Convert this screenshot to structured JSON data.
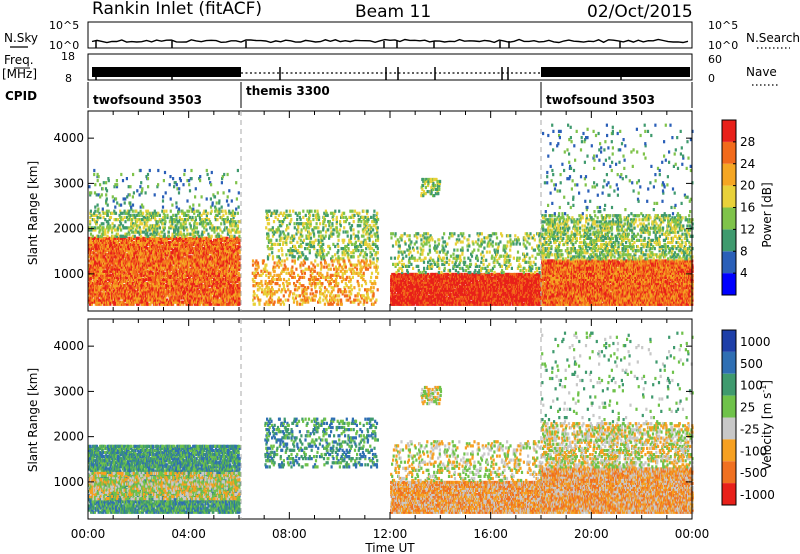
{
  "header": {
    "station": "Rankin Inlet (fitACF)",
    "beam": "Beam 11",
    "date": "02/Oct/2015"
  },
  "strip_labels": {
    "nsky": "N.Sky",
    "freq_a": "Freq.",
    "freq_b": "[MHz]",
    "cpid": "CPID",
    "nsearch": "N.Search",
    "nave": "Nave",
    "nsky_top": "10^5",
    "nsky_bot": "10^0",
    "freq_top": "18",
    "freq_bot": "8",
    "nave_top": "60",
    "nave_bot": "0",
    "cpid_segments": [
      {
        "name": "twofsound 3503",
        "start_h": 0,
        "end_h": 6
      },
      {
        "name": "themis 3300",
        "start_h": 6,
        "end_h": 18
      },
      {
        "name": "twofsound 3503",
        "start_h": 18,
        "end_h": 24
      }
    ]
  },
  "chart_data": [
    {
      "type": "heatmap",
      "title": "",
      "xlabel": "Time UT",
      "ylabel": "Slant Range [km]",
      "x_ticks": [
        "00:00",
        "04:00",
        "08:00",
        "12:00",
        "16:00",
        "20:00",
        "00:00"
      ],
      "x_range_hours": [
        0,
        24
      ],
      "y_ticks": [
        1000,
        2000,
        3000,
        4000
      ],
      "ylim": [
        180,
        4600
      ],
      "colorbar": {
        "label": "Power [dB]",
        "ticks": [
          "4",
          "8",
          "12",
          "16",
          "20",
          "24",
          "28"
        ],
        "colors": [
          "#0000ff",
          "#2a5fb8",
          "#3f9a6e",
          "#7fc34a",
          "#e8d13a",
          "#f5a623",
          "#f26a1b",
          "#e8201a"
        ]
      },
      "regions": [
        {
          "t0": 0.0,
          "t1": 6.0,
          "r0": 300,
          "r1": 1800,
          "density": 0.75,
          "level": 6
        },
        {
          "t0": 0.0,
          "t1": 6.0,
          "r0": 1800,
          "r1": 2400,
          "density": 0.25,
          "level": 3
        },
        {
          "t0": 0.0,
          "t1": 6.0,
          "r0": 2400,
          "r1": 3300,
          "density": 0.04,
          "level": 2
        },
        {
          "t0": 7.0,
          "t1": 11.5,
          "r0": 1300,
          "r1": 2400,
          "density": 0.18,
          "level": 3
        },
        {
          "t0": 6.5,
          "t1": 11.5,
          "r0": 300,
          "r1": 1300,
          "density": 0.2,
          "level": 5
        },
        {
          "t0": 12.0,
          "t1": 18.0,
          "r0": 300,
          "r1": 1000,
          "density": 0.85,
          "level": 7
        },
        {
          "t0": 12.0,
          "t1": 18.0,
          "r0": 1000,
          "r1": 1900,
          "density": 0.15,
          "level": 3
        },
        {
          "t0": 13.2,
          "t1": 14.0,
          "r0": 2700,
          "r1": 3100,
          "density": 0.35,
          "level": 3
        },
        {
          "t0": 18.0,
          "t1": 24.0,
          "r0": 300,
          "r1": 1300,
          "density": 0.9,
          "level": 6
        },
        {
          "t0": 18.0,
          "t1": 24.0,
          "r0": 1300,
          "r1": 2300,
          "density": 0.3,
          "level": 3
        },
        {
          "t0": 18.0,
          "t1": 24.0,
          "r0": 2300,
          "r1": 4300,
          "density": 0.03,
          "level": 2
        }
      ]
    },
    {
      "type": "heatmap",
      "title": "",
      "xlabel": "Time UT",
      "ylabel": "Slant Range [km]",
      "x_ticks": [
        "00:00",
        "04:00",
        "08:00",
        "12:00",
        "16:00",
        "20:00",
        "00:00"
      ],
      "x_range_hours": [
        0,
        24
      ],
      "y_ticks": [
        1000,
        2000,
        3000,
        4000
      ],
      "ylim": [
        180,
        4600
      ],
      "colorbar": {
        "label": "Velocity [m s^-1]",
        "unit_base": "Velocity [m s",
        "unit_exp": "-1",
        "unit_close": "]",
        "ticks": [
          "1000",
          "500",
          "100",
          "25",
          "-25",
          "-100",
          "-500",
          "-1000"
        ],
        "colors": [
          "#1e3fa8",
          "#2f6fb3",
          "#3f9a6e",
          "#6fc24a",
          "#c8c8c8",
          "#f6a021",
          "#f07020",
          "#e8201a"
        ]
      },
      "regions": [
        {
          "t0": 0.0,
          "t1": 6.0,
          "r0": 300,
          "r1": 1800,
          "density": 0.7,
          "level": 2
        },
        {
          "t0": 0.0,
          "t1": 6.0,
          "r0": 600,
          "r1": 1200,
          "density": 0.5,
          "level": 4
        },
        {
          "t0": 7.0,
          "t1": 11.5,
          "r0": 1300,
          "r1": 2400,
          "density": 0.18,
          "level": 2
        },
        {
          "t0": 12.0,
          "t1": 18.0,
          "r0": 300,
          "r1": 1000,
          "density": 0.85,
          "level": 5
        },
        {
          "t0": 12.0,
          "t1": 18.0,
          "r0": 1000,
          "r1": 1900,
          "density": 0.15,
          "level": 4
        },
        {
          "t0": 13.2,
          "t1": 14.0,
          "r0": 2700,
          "r1": 3100,
          "density": 0.35,
          "level": 4
        },
        {
          "t0": 18.0,
          "t1": 24.0,
          "r0": 300,
          "r1": 1300,
          "density": 0.9,
          "level": 5
        },
        {
          "t0": 18.0,
          "t1": 24.0,
          "r0": 1300,
          "r1": 2300,
          "density": 0.3,
          "level": 4
        },
        {
          "t0": 18.0,
          "t1": 24.0,
          "r0": 2300,
          "r1": 4300,
          "density": 0.03,
          "level": 3
        }
      ]
    }
  ]
}
